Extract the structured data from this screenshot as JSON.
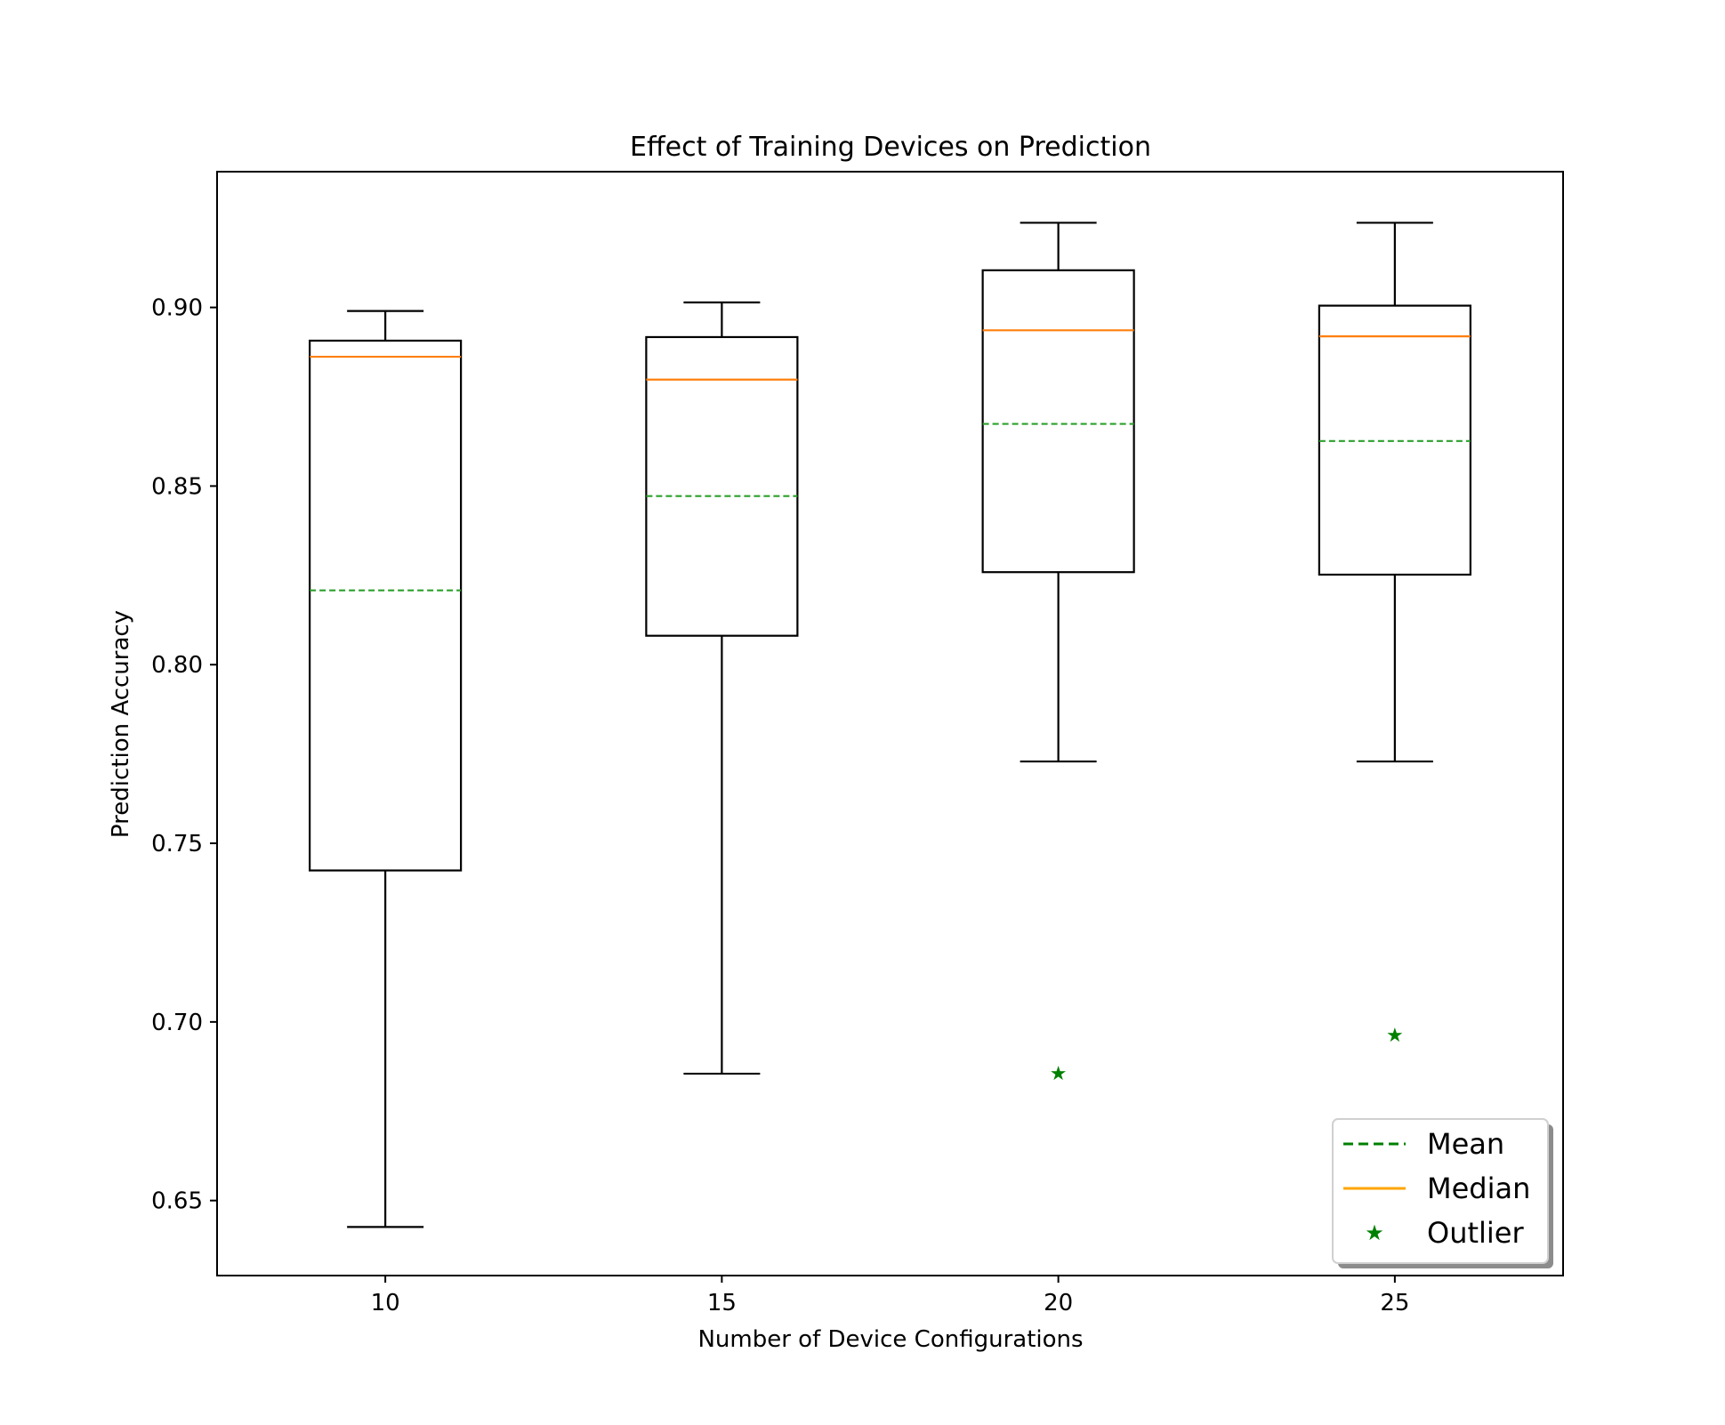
{
  "chart_data": {
    "type": "box",
    "title": "Effect of Training Devices on Prediction",
    "xlabel": "Number of Device Configurations",
    "ylabel": "Prediction Accuracy",
    "categories": [
      "10",
      "15",
      "20",
      "25"
    ],
    "x": [
      10,
      15,
      20,
      25
    ],
    "xlim": [
      7.5,
      27.5
    ],
    "ylim": [
      0.629,
      0.938
    ],
    "yticks": [
      0.65,
      0.7,
      0.75,
      0.8,
      0.85,
      0.9
    ],
    "ytick_labels": [
      "0.65",
      "0.70",
      "0.75",
      "0.80",
      "0.85",
      "0.90"
    ],
    "boxes": [
      {
        "x": 10,
        "whisker_low": 0.6426,
        "q1": 0.7424,
        "median": 0.8862,
        "mean": 0.8208,
        "q3": 0.8907,
        "whisker_high": 0.899,
        "outliers": []
      },
      {
        "x": 15,
        "whisker_low": 0.6855,
        "q1": 0.8081,
        "median": 0.8798,
        "mean": 0.8472,
        "q3": 0.8917,
        "whisker_high": 0.9014,
        "outliers": []
      },
      {
        "x": 20,
        "whisker_low": 0.7729,
        "q1": 0.8259,
        "median": 0.8936,
        "mean": 0.8674,
        "q3": 0.9104,
        "whisker_high": 0.9237,
        "outliers": [
          0.6858
        ]
      },
      {
        "x": 25,
        "whisker_low": 0.7729,
        "q1": 0.8252,
        "median": 0.8919,
        "mean": 0.8626,
        "q3": 0.9005,
        "whisker_high": 0.9237,
        "outliers": [
          0.6965
        ]
      }
    ],
    "legend": {
      "placement": "lower-right",
      "entries": [
        {
          "label": "Mean",
          "style": "dashed-line",
          "color": "#008000"
        },
        {
          "label": "Median",
          "style": "solid-line",
          "color": "#ffa500"
        },
        {
          "label": "Outlier",
          "style": "star-marker",
          "color": "#008000"
        }
      ]
    },
    "colors": {
      "box": "#000000",
      "median": "#ff7f0e",
      "mean": "#2ca02c",
      "outlier": "#008000"
    },
    "grid": false
  }
}
